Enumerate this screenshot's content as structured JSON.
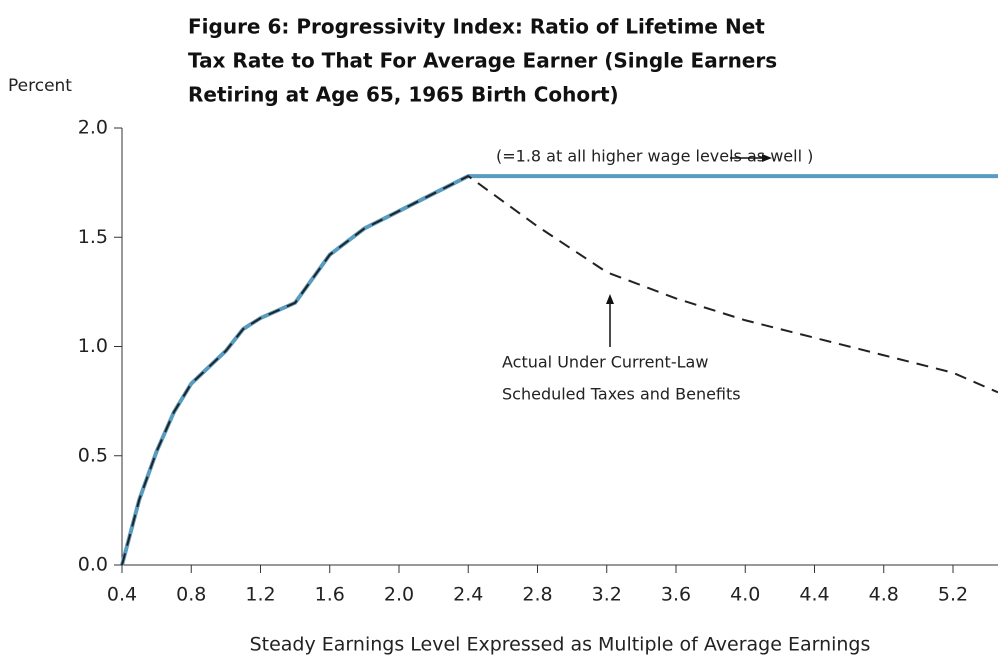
{
  "chart_data": {
    "type": "line",
    "title": [
      "Figure 6:  Progressivity Index: Ratio of Lifetime Net",
      "Tax Rate to That For Average Earner (Single Earners",
      "Retiring at Age 65, 1965 Birth Cohort)"
    ],
    "y_label": "Percent",
    "x_label": "Steady Earnings Level Expressed as Multiple of Average Earnings",
    "annotations": [
      "(=1.8 at all higher wage levels as well )",
      "Actual Under Current-Law",
      "Scheduled Taxes and Benefits"
    ],
    "x": [
      0.4,
      0.5,
      0.6,
      0.7,
      0.8,
      1.0,
      1.1,
      1.2,
      1.4,
      1.6,
      1.8,
      2.0,
      2.2,
      2.4,
      2.8,
      3.2,
      3.6,
      4.0,
      4.4,
      4.8,
      5.2,
      5.46
    ],
    "series": [
      {
        "color": "#5a9cc0",
        "dash": false,
        "values": [
          0,
          0.3,
          0.52,
          0.7,
          0.83,
          0.98,
          1.08,
          1.13,
          1.2,
          1.42,
          1.54,
          1.62,
          1.7,
          1.78,
          1.78,
          1.78,
          1.78,
          1.78,
          1.78,
          1.78,
          1.78,
          1.78
        ]
      },
      {
        "color": "#222222",
        "dash": true,
        "values": [
          0,
          0.3,
          0.52,
          0.7,
          0.83,
          0.98,
          1.08,
          1.13,
          1.2,
          1.42,
          1.54,
          1.62,
          1.7,
          1.78,
          1.55,
          1.34,
          1.22,
          1.12,
          1.04,
          0.96,
          0.88,
          0.79
        ]
      }
    ],
    "xlim": [
      0.4,
      5.46
    ],
    "ylim": [
      0,
      2
    ],
    "xticks": [
      0.4,
      0.8,
      1.2,
      1.6,
      {
        "value": 2,
        "label": "2.0"
      },
      2.4,
      2.8,
      3.2,
      3.6,
      {
        "value": 4,
        "label": "4.0"
      },
      4.4,
      4.8,
      5.2
    ],
    "yticks": [
      {
        "value": 0,
        "label": "0.0"
      },
      0.5,
      {
        "value": 1,
        "label": "1.0"
      },
      1.5,
      {
        "value": 2,
        "label": "2.0"
      }
    ]
  }
}
